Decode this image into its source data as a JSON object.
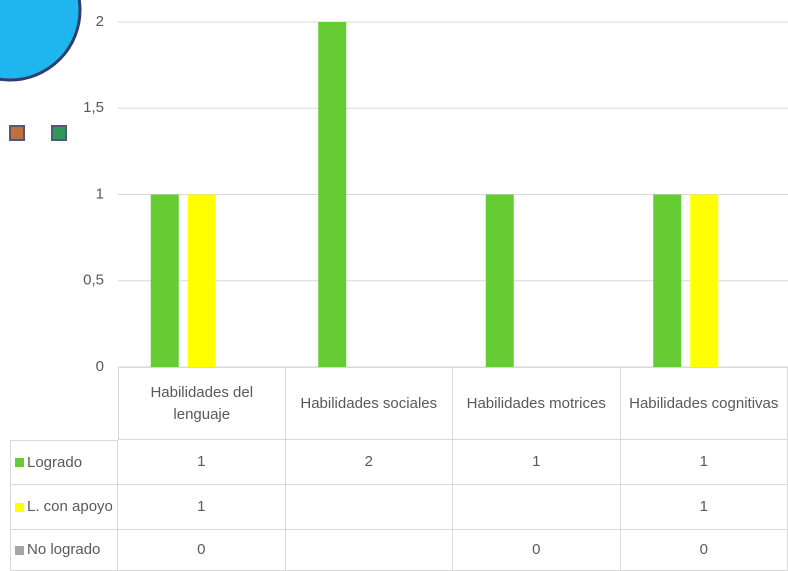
{
  "chart_data": {
    "type": "bar",
    "categories": [
      "Habilidades del lenguaje",
      "Habilidades sociales",
      "Habilidades motrices",
      "Habilidades cognitivas"
    ],
    "series": [
      {
        "name": "Logrado",
        "color": "#66cc33",
        "values": [
          1,
          2,
          1,
          1
        ]
      },
      {
        "name": "L. con apoyo",
        "color": "#ffff00",
        "values": [
          1,
          null,
          null,
          1
        ]
      },
      {
        "name": "No logrado",
        "color": "#a6a6a6",
        "values": [
          0,
          null,
          0,
          0
        ]
      }
    ],
    "ylim": [
      0,
      2
    ],
    "yticks": [
      0,
      {
        "value": 0.5,
        "label": "0,5"
      },
      1,
      {
        "value": 1.5,
        "label": "1,5"
      },
      2
    ],
    "grid": true
  }
}
